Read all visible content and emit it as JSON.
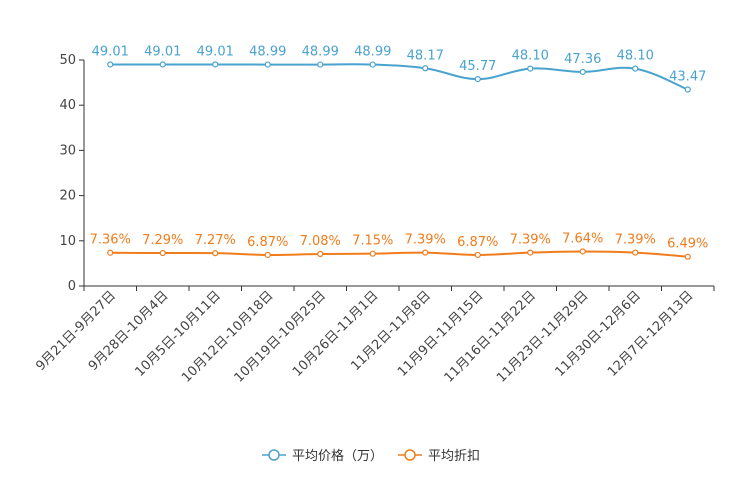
{
  "chart_data": {
    "type": "line",
    "title": "",
    "xlabel": "",
    "ylabel": "",
    "ylim": [
      0,
      50
    ],
    "yticks": [
      "0",
      "10",
      "20",
      "30",
      "40",
      "50"
    ],
    "categories": [
      "9月21日-9月27日",
      "9月28日-10月4日",
      "10月5日-10月11日",
      "10月12日-10月18日",
      "10月19日-10月25日",
      "10月26日-11月1日",
      "11月2日-11月8日",
      "11月9日-11月15日",
      "11月16日-11月22日",
      "11月23日-11月29日",
      "11月30日-12月6日",
      "12月7日-12月13日"
    ],
    "series": [
      {
        "name": "平均价格（万）",
        "color": "#4aa3cf",
        "values": [
          49.01,
          49.01,
          49.01,
          48.99,
          48.99,
          48.99,
          48.17,
          45.77,
          48.1,
          47.36,
          48.1,
          43.47
        ],
        "labels": [
          "49.01",
          "49.01",
          "49.01",
          "48.99",
          "48.99",
          "48.99",
          "48.17",
          "45.77",
          "48.10",
          "47.36",
          "48.10",
          "43.47"
        ]
      },
      {
        "name": "平均折扣",
        "color": "#f07c1c",
        "values": [
          7.36,
          7.29,
          7.27,
          6.87,
          7.08,
          7.15,
          7.39,
          6.87,
          7.39,
          7.64,
          7.39,
          6.49
        ],
        "labels": [
          "7.36%",
          "7.29%",
          "7.27%",
          "6.87%",
          "7.08%",
          "7.15%",
          "7.39%",
          "6.87%",
          "7.39%",
          "7.64%",
          "7.39%",
          "6.49%"
        ]
      }
    ],
    "legend_position": "bottom-center",
    "grid": false
  }
}
